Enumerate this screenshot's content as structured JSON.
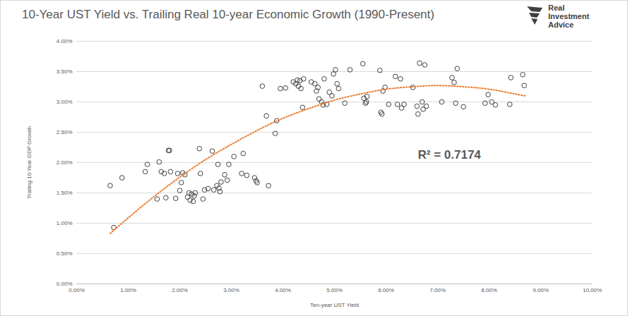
{
  "chart_data": {
    "type": "scatter",
    "title": "10-Year UST Yield vs. Trailing Real 10-year Economic Growth (1990-Present)",
    "x_label": "Ten-year UST Yield",
    "y_label": "Trailing 10 Year GDP Growth",
    "annotations": [
      "R² = 0.7174",
      "Real Investment Advice"
    ],
    "xlim": [
      0,
      10
    ],
    "xticks": [
      {
        "value": 0,
        "label": "0.00%"
      },
      {
        "value": 1,
        "label": "1.00%"
      },
      {
        "value": 2,
        "label": "2.00%"
      },
      {
        "value": 3,
        "label": "3.00%"
      },
      {
        "value": 4,
        "label": "4.00%"
      },
      {
        "value": 5,
        "label": "5.00%"
      },
      {
        "value": 6,
        "label": "6.00%"
      },
      {
        "value": 7,
        "label": "7.00%"
      },
      {
        "value": 8,
        "label": "8.00%"
      },
      {
        "value": 9,
        "label": "9.00%"
      },
      {
        "value": 10,
        "label": "10.00%"
      }
    ],
    "ylim": [
      0,
      4
    ],
    "yticks": [
      {
        "value": 0,
        "label": "0.00%"
      },
      {
        "value": 0.5,
        "label": "0.50%"
      },
      {
        "value": 1,
        "label": "1.00%"
      },
      {
        "value": 1.5,
        "label": "1.50%"
      },
      {
        "value": 2,
        "label": "2.00%"
      },
      {
        "value": 2.5,
        "label": "2.50%"
      },
      {
        "value": 3,
        "label": "3.00%"
      },
      {
        "value": 3.5,
        "label": "3.50%"
      },
      {
        "value": 4,
        "label": "4.00%"
      }
    ],
    "grid": true,
    "series": [
      {
        "type": "scatter",
        "marker": "circle",
        "color": "#404040",
        "x": [
          0.65,
          0.72,
          0.88,
          1.33,
          1.37,
          1.56,
          1.6,
          1.64,
          1.7,
          1.73,
          1.78,
          1.8,
          1.82,
          1.92,
          1.96,
          2.0,
          2.03,
          2.06,
          2.1,
          2.15,
          2.18,
          2.2,
          2.23,
          2.26,
          2.28,
          2.3,
          2.38,
          2.4,
          2.45,
          2.48,
          2.55,
          2.63,
          2.66,
          2.72,
          2.74,
          2.76,
          2.78,
          2.8,
          2.87,
          2.92,
          2.95,
          3.05,
          3.2,
          3.23,
          3.3,
          3.45,
          3.48,
          3.5,
          3.6,
          3.68,
          3.72,
          3.85,
          3.88,
          3.95,
          4.05,
          4.2,
          4.25,
          4.28,
          4.3,
          4.33,
          4.35,
          4.38,
          4.4,
          4.55,
          4.62,
          4.65,
          4.68,
          4.7,
          4.75,
          4.78,
          4.8,
          4.85,
          4.9,
          4.95,
          4.98,
          5.02,
          5.05,
          5.08,
          5.2,
          5.3,
          5.55,
          5.57,
          5.6,
          5.62,
          5.63,
          5.88,
          5.9,
          5.92,
          5.94,
          5.98,
          6.05,
          6.18,
          6.22,
          6.28,
          6.3,
          6.35,
          6.52,
          6.6,
          6.62,
          6.65,
          6.7,
          6.72,
          6.75,
          6.78,
          7.08,
          7.28,
          7.32,
          7.35,
          7.38,
          7.5,
          7.92,
          7.98,
          8.05,
          8.12,
          8.4,
          8.42,
          8.65,
          8.68
        ],
        "values": [
          1.62,
          0.93,
          1.75,
          1.85,
          1.97,
          1.4,
          2.01,
          1.85,
          1.82,
          1.42,
          2.2,
          2.2,
          1.85,
          1.41,
          1.82,
          1.54,
          1.67,
          1.83,
          1.8,
          1.43,
          1.5,
          1.38,
          1.48,
          1.36,
          1.45,
          1.5,
          2.23,
          1.82,
          1.4,
          1.55,
          1.57,
          2.19,
          1.55,
          1.62,
          1.97,
          1.58,
          1.52,
          1.68,
          1.8,
          1.71,
          1.97,
          2.1,
          1.82,
          2.15,
          1.79,
          1.75,
          1.7,
          1.67,
          3.26,
          2.77,
          1.62,
          2.48,
          2.69,
          3.22,
          3.23,
          3.33,
          3.3,
          3.36,
          3.26,
          3.35,
          3.22,
          2.91,
          3.38,
          3.33,
          3.3,
          3.18,
          3.24,
          3.05,
          3.0,
          2.95,
          3.38,
          2.96,
          3.16,
          3.1,
          3.46,
          3.53,
          3.3,
          3.22,
          2.98,
          3.53,
          3.63,
          3.06,
          2.98,
          3.0,
          3.09,
          3.52,
          2.83,
          2.8,
          3.18,
          3.24,
          2.96,
          3.42,
          2.96,
          3.38,
          2.9,
          2.96,
          3.24,
          2.93,
          2.8,
          3.64,
          3.0,
          2.88,
          3.61,
          2.93,
          3.0,
          3.4,
          3.32,
          2.98,
          3.55,
          2.92,
          2.98,
          3.12,
          3.0,
          2.95,
          2.96,
          3.4,
          3.45,
          3.27
        ]
      },
      {
        "type": "line",
        "line_style": "dotted",
        "color": "#ED7D31",
        "x": [
          0.65,
          1,
          1.5,
          2,
          2.5,
          3,
          3.5,
          4,
          4.5,
          5,
          5.5,
          6,
          6.5,
          7,
          7.5,
          8,
          8.5,
          8.7
        ],
        "values": [
          0.83,
          1.09,
          1.44,
          1.76,
          2.05,
          2.3,
          2.53,
          2.73,
          2.89,
          3.03,
          3.13,
          3.21,
          3.25,
          3.27,
          3.25,
          3.21,
          3.13,
          3.1
        ]
      }
    ]
  }
}
